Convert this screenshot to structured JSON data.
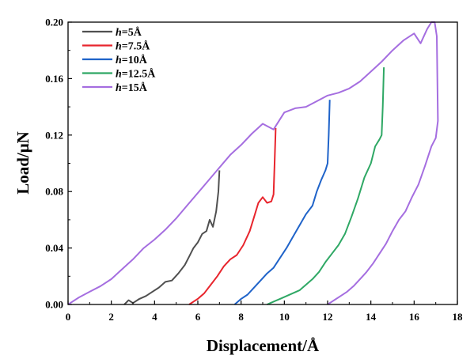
{
  "chart_data": {
    "type": "line",
    "xlabel": "Displacement/Å",
    "ylabel": "Load/μN",
    "xlim": [
      0,
      18
    ],
    "ylim": [
      0,
      0.2
    ],
    "xticks": [
      0,
      2,
      4,
      6,
      8,
      10,
      12,
      14,
      16,
      18
    ],
    "yticks": [
      0.0,
      0.04,
      0.08,
      0.12,
      0.16,
      0.2
    ],
    "xtick_labels": [
      "0",
      "2",
      "4",
      "6",
      "8",
      "10",
      "12",
      "14",
      "16",
      "18"
    ],
    "ytick_labels": [
      "0.00",
      "0.04",
      "0.08",
      "0.12",
      "0.16",
      "0.20"
    ],
    "grid": false,
    "legend_position": "top-left",
    "series": [
      {
        "name": "h=5Å",
        "label_var": "h",
        "label_rest": "=5Å",
        "color": "#505050",
        "x": [
          2.6,
          2.8,
          3.0,
          3.3,
          3.6,
          3.9,
          4.2,
          4.5,
          4.8,
          5.1,
          5.4,
          5.6,
          5.8,
          6.0,
          6.2,
          6.4,
          6.55,
          6.7,
          6.85,
          6.95,
          7.0
        ],
        "y": [
          0.0,
          0.003,
          0.001,
          0.004,
          0.006,
          0.009,
          0.012,
          0.016,
          0.017,
          0.022,
          0.028,
          0.034,
          0.04,
          0.044,
          0.05,
          0.052,
          0.06,
          0.055,
          0.066,
          0.08,
          0.095
        ]
      },
      {
        "name": "h=7.5Å",
        "label_var": "h",
        "label_rest": "=7.5Å",
        "color": "#e8252d",
        "x": [
          5.6,
          5.8,
          6.0,
          6.3,
          6.6,
          6.9,
          7.2,
          7.5,
          7.8,
          8.1,
          8.4,
          8.6,
          8.8,
          9.0,
          9.2,
          9.4,
          9.5,
          9.55,
          9.6
        ],
        "y": [
          0.0,
          0.002,
          0.004,
          0.008,
          0.014,
          0.02,
          0.027,
          0.032,
          0.035,
          0.042,
          0.052,
          0.062,
          0.072,
          0.076,
          0.072,
          0.073,
          0.078,
          0.1,
          0.125
        ]
      },
      {
        "name": "h=10Å",
        "label_var": "h",
        "label_rest": "=10Å",
        "color": "#1f63c9",
        "x": [
          7.7,
          8.0,
          8.3,
          8.6,
          8.9,
          9.2,
          9.5,
          9.8,
          10.1,
          10.4,
          10.7,
          11.0,
          11.3,
          11.5,
          11.7,
          11.9,
          12.0,
          12.05,
          12.1
        ],
        "y": [
          0.0,
          0.004,
          0.007,
          0.012,
          0.017,
          0.022,
          0.026,
          0.033,
          0.04,
          0.048,
          0.056,
          0.064,
          0.07,
          0.08,
          0.088,
          0.095,
          0.1,
          0.12,
          0.145
        ]
      },
      {
        "name": "h=12.5Å",
        "label_var": "h",
        "label_rest": "=12.5Å",
        "color": "#2fa865",
        "x": [
          9.2,
          9.5,
          9.8,
          10.1,
          10.4,
          10.7,
          11.0,
          11.3,
          11.6,
          11.9,
          12.2,
          12.5,
          12.8,
          13.1,
          13.4,
          13.7,
          14.0,
          14.2,
          14.4,
          14.5,
          14.55,
          14.6
        ],
        "y": [
          0.0,
          0.002,
          0.004,
          0.006,
          0.008,
          0.01,
          0.014,
          0.018,
          0.023,
          0.03,
          0.036,
          0.042,
          0.05,
          0.062,
          0.075,
          0.09,
          0.1,
          0.112,
          0.117,
          0.12,
          0.14,
          0.168
        ]
      },
      {
        "name": "h=15Å",
        "label_var": "h",
        "label_rest": "=15Å",
        "color": "#a56ee0",
        "x": [
          0.0,
          0.5,
          1.0,
          1.5,
          2.0,
          2.5,
          3.0,
          3.5,
          4.0,
          4.5,
          5.0,
          5.5,
          6.0,
          6.5,
          7.0,
          7.5,
          8.0,
          8.5,
          9.0,
          9.5,
          10.0,
          10.5,
          11.0,
          11.5,
          12.0,
          12.5,
          13.0,
          13.5,
          14.0,
          14.5,
          15.0,
          15.5,
          16.0,
          16.3,
          16.6,
          16.8,
          16.95,
          17.05,
          17.1,
          17.0,
          16.8,
          16.5,
          16.2,
          15.9,
          15.6,
          15.3,
          15.0,
          14.7,
          14.4,
          14.1,
          13.8,
          13.5,
          13.2,
          12.9,
          12.6,
          12.3,
          12.0
        ],
        "y": [
          0.0,
          0.005,
          0.009,
          0.013,
          0.018,
          0.025,
          0.032,
          0.04,
          0.046,
          0.053,
          0.061,
          0.07,
          0.079,
          0.088,
          0.097,
          0.106,
          0.113,
          0.121,
          0.128,
          0.124,
          0.136,
          0.139,
          0.14,
          0.144,
          0.148,
          0.15,
          0.153,
          0.158,
          0.165,
          0.172,
          0.18,
          0.187,
          0.192,
          0.185,
          0.195,
          0.2,
          0.2,
          0.19,
          0.13,
          0.118,
          0.112,
          0.098,
          0.085,
          0.076,
          0.066,
          0.06,
          0.052,
          0.043,
          0.036,
          0.029,
          0.023,
          0.018,
          0.013,
          0.009,
          0.006,
          0.003,
          0.0
        ]
      }
    ]
  }
}
